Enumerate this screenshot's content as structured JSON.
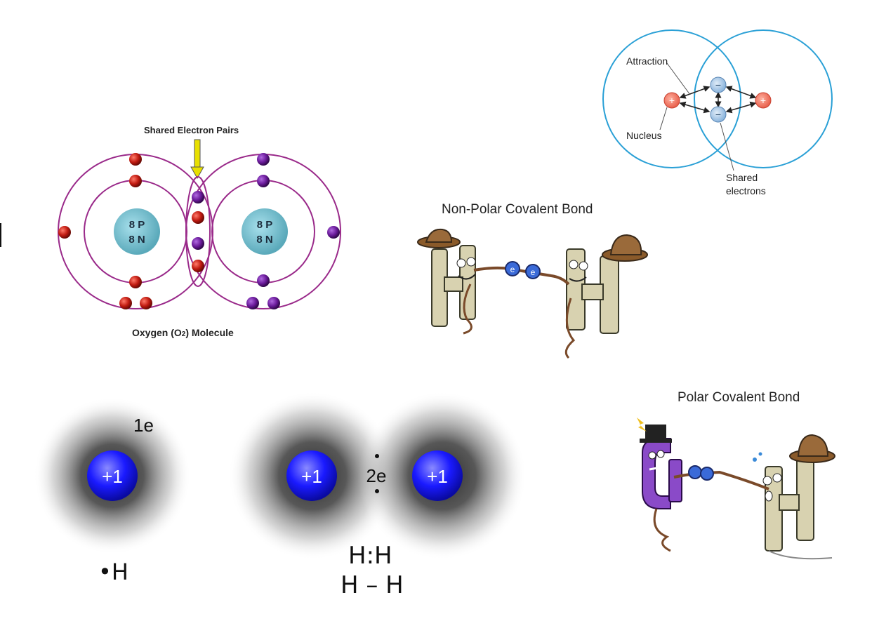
{
  "oxygen": {
    "shared_label": "Shared Electron Pairs",
    "left_nucleus": [
      "8 P",
      "8 N"
    ],
    "right_nucleus": [
      "8 P",
      "8 N"
    ],
    "caption": "Oxygen (O2) Molecule",
    "caption_main": "Oxygen (O",
    "caption_sub": "2",
    "caption_tail": ") Molecule",
    "colors": {
      "left_electron": "#c01a10",
      "right_electron": "#6a1a9a",
      "orbit": "#9a2a8a",
      "nucleus": "#7cc7d6"
    }
  },
  "bond_diagram": {
    "attraction": "Attraction",
    "nucleus": "Nucleus",
    "shared_line1": "Shared",
    "shared_line2": "electrons",
    "plus": "+",
    "minus": "−",
    "colors": {
      "circle": "#2aa0d6",
      "proton": "#e8604c",
      "electron": "#9cc0e0"
    }
  },
  "nonpolar": {
    "title": "Non-Polar Covalent Bond",
    "e1": "e",
    "e2": "e",
    "left_letter": "H",
    "right_letter": "H"
  },
  "polar": {
    "title": "Polar Covalent Bond",
    "left_letter": "Cl",
    "right_letter": "H"
  },
  "hydrogen": {
    "single_charge": "+1",
    "single_electron": "1e",
    "single_symbol": "•H",
    "pair_left_charge": "+1",
    "pair_right_charge": "+1",
    "pair_electrons": "2e",
    "lewis_dot": "H:H",
    "lewis_line": "H – H",
    "colors": {
      "nucleus": "#1a1aff",
      "cloud": "#444444"
    }
  }
}
